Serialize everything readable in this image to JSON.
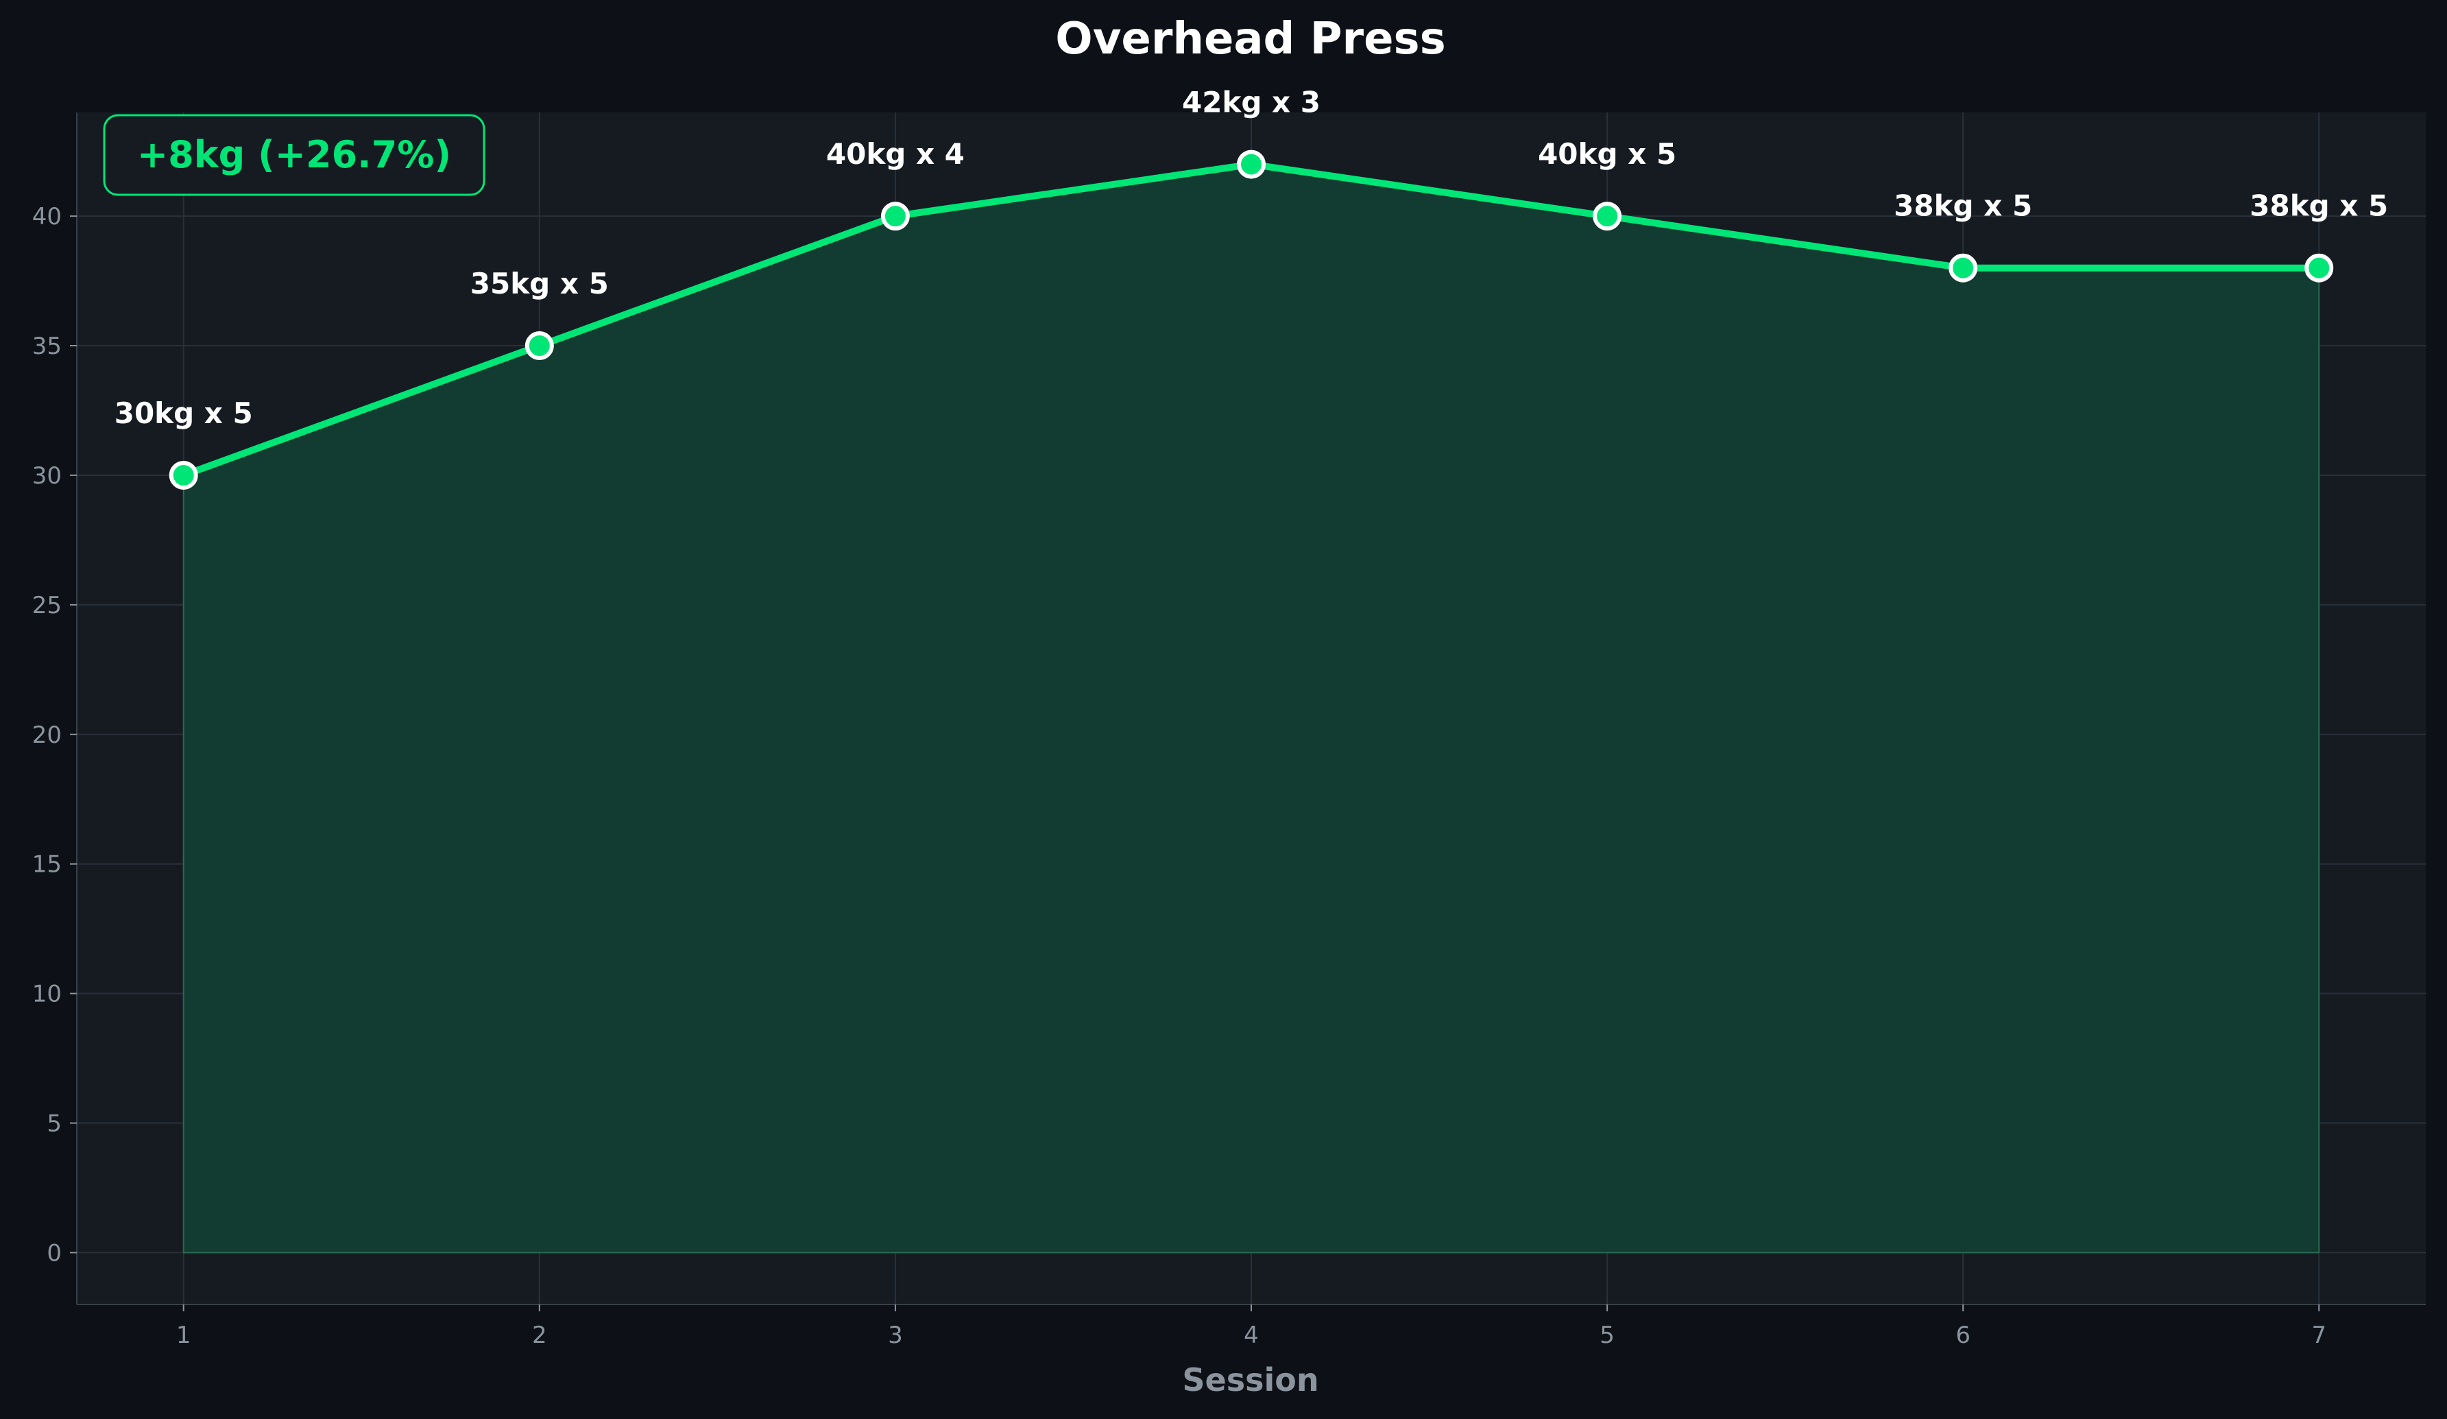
{
  "chart_data": {
    "type": "area",
    "title": "Overhead Press",
    "xlabel": "Session",
    "ylabel": "",
    "x": [
      1,
      2,
      3,
      4,
      5,
      6,
      7
    ],
    "series": [
      {
        "values": [
          30,
          35,
          40,
          42,
          40,
          38,
          38
        ],
        "point_labels": [
          "30kg x 5",
          "35kg x 5",
          "40kg x 4",
          "42kg x 3",
          "40kg x 5",
          "38kg x 5",
          "38kg x 5"
        ]
      }
    ],
    "xlim": [
      0.7,
      7.3
    ],
    "ylim": [
      -2,
      44
    ],
    "xticks": [
      1,
      2,
      3,
      4,
      5,
      6,
      7
    ],
    "yticks": [
      0,
      5,
      10,
      15,
      20,
      25,
      30,
      35,
      40
    ],
    "grid": true,
    "annotation": "+8kg (+26.7%)",
    "colors": {
      "background": "#0d1117",
      "plot_background": "#161b22",
      "line": "#00e676",
      "fill": "#123b31",
      "grid": "#2a3038",
      "tick_text": "#8b949e",
      "marker_edge": "#ffffff",
      "badge_text": "#00e676",
      "badge_border": "#00e676"
    }
  }
}
